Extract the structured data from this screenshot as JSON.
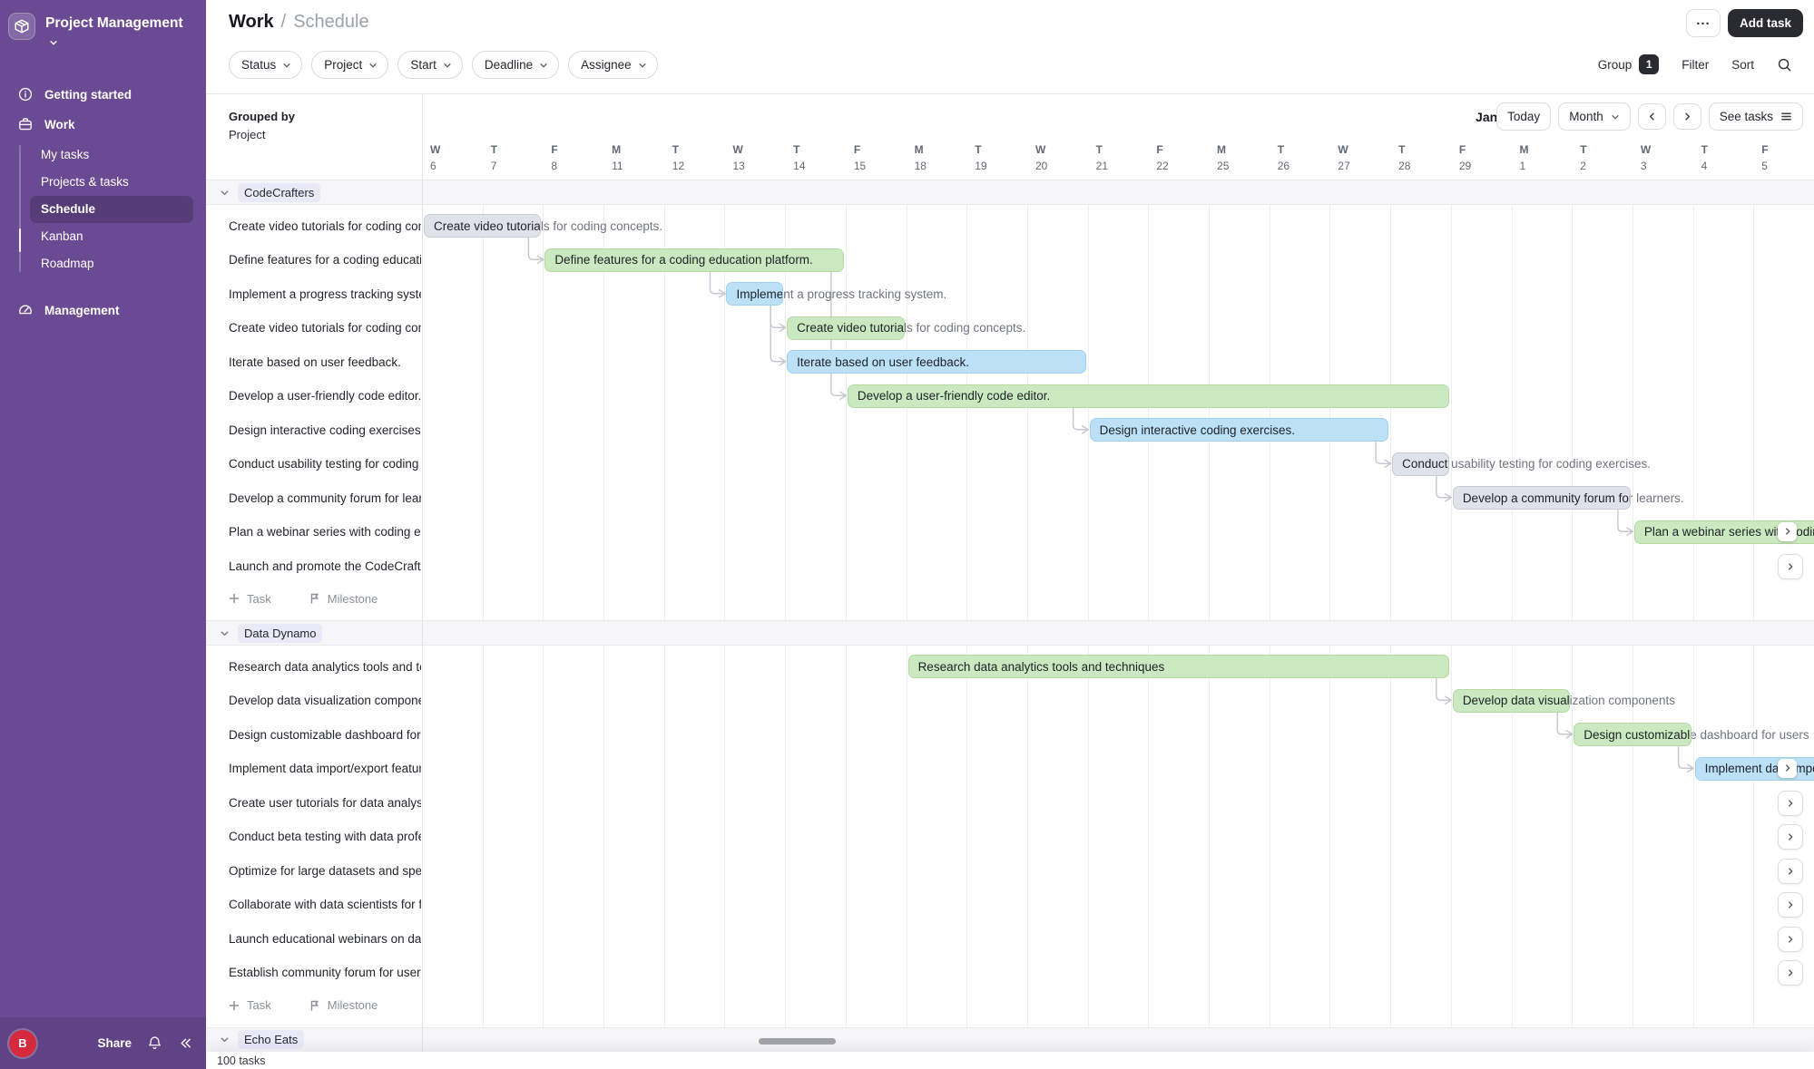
{
  "sidebar": {
    "workspace": "Project Management",
    "getting_started": "Getting started",
    "work": "Work",
    "work_subitems": [
      "My tasks",
      "Projects & tasks",
      "Schedule",
      "Kanban",
      "Roadmap"
    ],
    "selected_subitem": "Schedule",
    "management": "Management",
    "footer": {
      "avatar": "B",
      "share": "Share"
    }
  },
  "header": {
    "breadcrumb": [
      "Work",
      "Schedule"
    ],
    "separator": "/",
    "more_label": "...",
    "add_task": "Add task",
    "filters": [
      "Status",
      "Project",
      "Start",
      "Deadline",
      "Assignee"
    ],
    "right": {
      "group": "Group",
      "group_count": "1",
      "filter": "Filter",
      "sort": "Sort"
    }
  },
  "toolbar": {
    "grouped_by": "Grouped by",
    "grouped_value": "Project",
    "month_label": "Jan",
    "today": "Today",
    "month": "Month",
    "see_tasks": "See tasks"
  },
  "timeline": {
    "days": [
      {
        "dow": "W",
        "date": "6"
      },
      {
        "dow": "T",
        "date": "7"
      },
      {
        "dow": "F",
        "date": "8"
      },
      {
        "dow": "M",
        "date": "11"
      },
      {
        "dow": "T",
        "date": "12"
      },
      {
        "dow": "W",
        "date": "13"
      },
      {
        "dow": "T",
        "date": "14"
      },
      {
        "dow": "F",
        "date": "15"
      },
      {
        "dow": "M",
        "date": "18"
      },
      {
        "dow": "T",
        "date": "19"
      },
      {
        "dow": "W",
        "date": "20"
      },
      {
        "dow": "T",
        "date": "21"
      },
      {
        "dow": "F",
        "date": "22"
      },
      {
        "dow": "M",
        "date": "25"
      },
      {
        "dow": "T",
        "date": "26"
      },
      {
        "dow": "W",
        "date": "27"
      },
      {
        "dow": "T",
        "date": "28"
      },
      {
        "dow": "F",
        "date": "29"
      },
      {
        "dow": "M",
        "date": "1"
      },
      {
        "dow": "T",
        "date": "2"
      },
      {
        "dow": "W",
        "date": "3"
      },
      {
        "dow": "T",
        "date": "4"
      },
      {
        "dow": "F",
        "date": "5"
      }
    ]
  },
  "chart_data": {
    "type": "gantt",
    "group_footer": {
      "task": "Task",
      "milestone": "Milestone"
    },
    "groups": [
      {
        "name": "CodeCrafters",
        "tasks": [
          {
            "label": "Create video tutorials for coding concepts.",
            "color": "gray",
            "start": 0,
            "days": 2,
            "from": null
          },
          {
            "label": "Define features for a coding education platform.",
            "color": "green",
            "start": 2,
            "days": 5,
            "from": 0
          },
          {
            "label": "Implement a progress tracking system.",
            "color": "blue",
            "start": 5,
            "days": 1,
            "from": 1
          },
          {
            "label": "Create video tutorials for coding concepts.",
            "color": "green",
            "start": 6,
            "days": 2,
            "from": 2
          },
          {
            "label": "Iterate based on user feedback.",
            "color": "blue",
            "start": 6,
            "days": 5,
            "from": 2
          },
          {
            "label": "Develop a user-friendly code editor.",
            "color": "green",
            "start": 7,
            "days": 10,
            "from": 1
          },
          {
            "label": "Design interactive coding exercises.",
            "color": "blue",
            "start": 11,
            "days": 5,
            "from": 5
          },
          {
            "label": "Conduct usability testing for coding exercises.",
            "color": "gray",
            "start": 16,
            "days": 1,
            "from": 6
          },
          {
            "label": "Develop a community forum for learners.",
            "color": "gray",
            "start": 17,
            "days": 3,
            "from": 7
          },
          {
            "label": "Plan a webinar series with coding experts.",
            "color": "green",
            "start": 20,
            "days": 4,
            "from": 8,
            "clipped": true
          },
          {
            "label": "Launch and promote the CodeCrafters platform.",
            "offscreen": true
          }
        ]
      },
      {
        "name": "Data Dynamo",
        "tasks": [
          {
            "label": "Research data analytics tools and techniques",
            "color": "green",
            "start": 8,
            "days": 9,
            "from": null
          },
          {
            "label": "Develop data visualization components",
            "color": "green",
            "start": 17,
            "days": 2,
            "from": 0
          },
          {
            "label": "Design customizable dashboard for users",
            "color": "green",
            "start": 19,
            "days": 2,
            "from": 1
          },
          {
            "label": "Implement data import/export features",
            "color": "blue",
            "start": 21,
            "days": 3,
            "from": 2,
            "clipped": true
          },
          {
            "label": "Create user tutorials for data analysis",
            "offscreen": true
          },
          {
            "label": "Conduct beta testing with data professionals",
            "offscreen": true
          },
          {
            "label": "Optimize for large datasets and speed",
            "offscreen": true
          },
          {
            "label": "Collaborate with data scientists for feedback",
            "offscreen": true
          },
          {
            "label": "Launch educational webinars on data analytics",
            "offscreen": true
          },
          {
            "label": "Establish community forum for users",
            "offscreen": true
          }
        ]
      },
      {
        "name": "Echo Eats",
        "tasks": []
      }
    ]
  },
  "footer": {
    "task_count": "100 tasks"
  },
  "palette": {
    "sidebar": "#6a4b93",
    "accent_dark": "#2a2a31",
    "avatar_red": "#d5293d",
    "bar_green": "#cbe9c0",
    "bar_green_border": "#b2dba2",
    "bar_blue": "#bce1f7",
    "bar_blue_border": "#a0d0ef",
    "bar_gray": "#e0e2ea",
    "bar_gray_border": "#c9ccd7",
    "connector": "#c5c8cf"
  }
}
